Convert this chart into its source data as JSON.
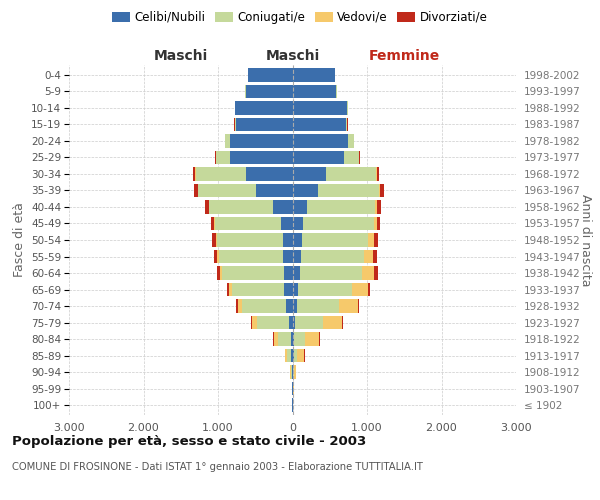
{
  "age_groups": [
    "100+",
    "95-99",
    "90-94",
    "85-89",
    "80-84",
    "75-79",
    "70-74",
    "65-69",
    "60-64",
    "55-59",
    "50-54",
    "45-49",
    "40-44",
    "35-39",
    "30-34",
    "25-29",
    "20-24",
    "15-19",
    "10-14",
    "5-9",
    "0-4"
  ],
  "birth_years": [
    "≤ 1902",
    "1903-1907",
    "1908-1912",
    "1913-1917",
    "1918-1922",
    "1923-1927",
    "1928-1932",
    "1933-1937",
    "1938-1942",
    "1943-1947",
    "1948-1952",
    "1953-1957",
    "1958-1962",
    "1963-1967",
    "1968-1972",
    "1973-1977",
    "1978-1982",
    "1983-1987",
    "1988-1992",
    "1993-1997",
    "1998-2002"
  ],
  "males_celibe": [
    3,
    5,
    8,
    15,
    25,
    50,
    90,
    110,
    120,
    130,
    130,
    150,
    260,
    490,
    620,
    840,
    840,
    760,
    770,
    630,
    600
  ],
  "males_coniugato": [
    2,
    5,
    18,
    55,
    170,
    420,
    590,
    700,
    820,
    850,
    880,
    890,
    860,
    780,
    680,
    190,
    65,
    18,
    4,
    1,
    0
  ],
  "males_vedovo": [
    0,
    2,
    8,
    28,
    55,
    75,
    55,
    48,
    38,
    28,
    22,
    10,
    5,
    4,
    4,
    2,
    1,
    0,
    0,
    0,
    0
  ],
  "males_divorziato": [
    0,
    0,
    2,
    4,
    7,
    12,
    18,
    22,
    38,
    48,
    42,
    38,
    48,
    52,
    28,
    8,
    4,
    2,
    0,
    0,
    0
  ],
  "females_nubile": [
    2,
    5,
    8,
    18,
    22,
    35,
    55,
    75,
    95,
    115,
    125,
    145,
    195,
    345,
    445,
    695,
    745,
    715,
    735,
    590,
    570
  ],
  "females_coniugata": [
    1,
    4,
    12,
    45,
    140,
    370,
    570,
    720,
    835,
    845,
    895,
    945,
    915,
    815,
    675,
    195,
    75,
    22,
    4,
    1,
    0
  ],
  "females_vedova": [
    2,
    5,
    28,
    95,
    195,
    265,
    255,
    215,
    165,
    115,
    75,
    38,
    18,
    12,
    8,
    4,
    2,
    1,
    0,
    0,
    0
  ],
  "females_divorziata": [
    0,
    0,
    2,
    4,
    8,
    12,
    18,
    28,
    48,
    58,
    58,
    48,
    58,
    58,
    32,
    12,
    4,
    2,
    0,
    0,
    0
  ],
  "color_celibe": "#3b6eac",
  "color_coniugato": "#c5d99b",
  "color_vedovo": "#f6c96b",
  "color_divorziato": "#c0291a",
  "xlim": 3000,
  "title": "Popolazione per età, sesso e stato civile - 2003",
  "subtitle": "COMUNE DI FROSINONE - Dati ISTAT 1° gennaio 2003 - Elaborazione TUTTITALIA.IT",
  "ylabel_left": "Fasce di età",
  "ylabel_right": "Anni di nascita",
  "maschi_label": "Maschi",
  "femmine_label": "Femmine",
  "legend_labels": [
    "Celibi/Nubili",
    "Coniugati/e",
    "Vedovi/e",
    "Divorziati/e"
  ],
  "bar_height": 0.82
}
